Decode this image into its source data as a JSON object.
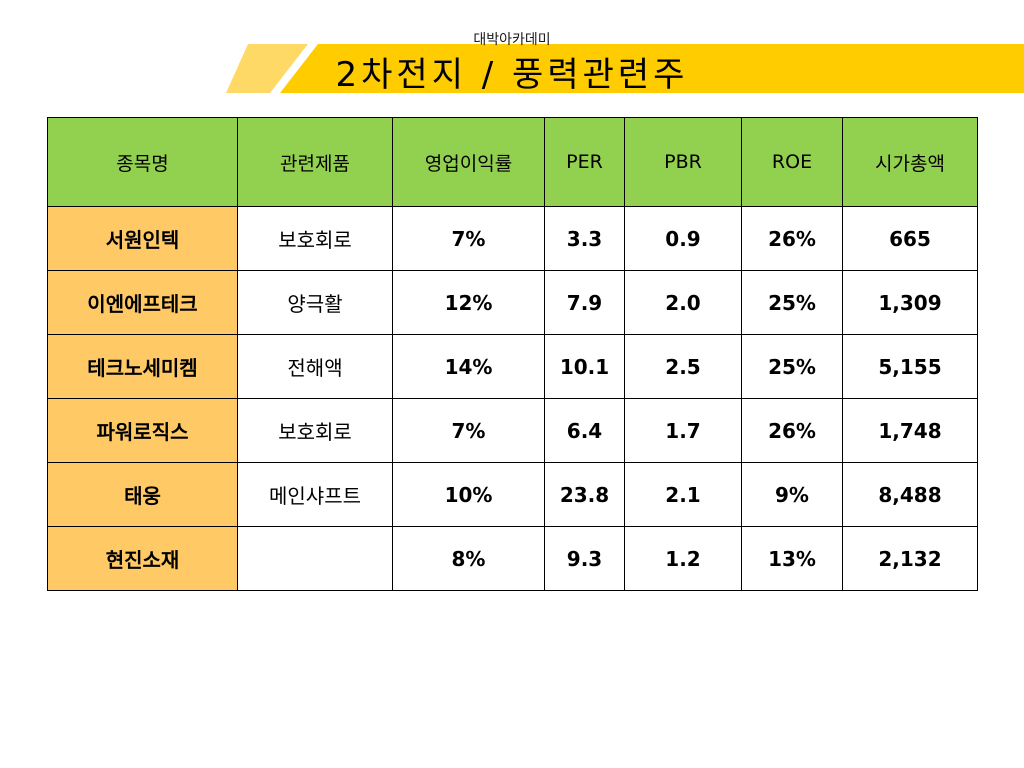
{
  "header": {
    "subtitle": "대박아카데미",
    "title": "2차전지 / 풍력관련주",
    "banner_colors": {
      "main": "#ffcc00",
      "accent": "#ffd966"
    }
  },
  "table": {
    "columns": [
      "종목명",
      "관련제품",
      "영업이익률",
      "PER",
      "PBR",
      "ROE",
      "시가총액"
    ],
    "rows": [
      {
        "name": "서원인텍",
        "product": "보호회로",
        "margin": "7%",
        "per": "3.3",
        "pbr": "0.9",
        "roe": "26%",
        "cap": "665"
      },
      {
        "name": "이엔에프테크",
        "product": "양극활",
        "margin": "12%",
        "per": "7.9",
        "pbr": "2.0",
        "roe": "25%",
        "cap": "1,309"
      },
      {
        "name": "테크노세미켐",
        "product": "전해액",
        "margin": "14%",
        "per": "10.1",
        "pbr": "2.5",
        "roe": "25%",
        "cap": "5,155"
      },
      {
        "name": "파워로직스",
        "product": "보호회로",
        "margin": "7%",
        "per": "6.4",
        "pbr": "1.7",
        "roe": "26%",
        "cap": "1,748"
      },
      {
        "name": "태웅",
        "product": "메인샤프트",
        "margin": "10%",
        "per": "23.8",
        "pbr": "2.1",
        "roe": "9%",
        "cap": "8,488"
      },
      {
        "name": "현진소재",
        "product": "",
        "margin": "8%",
        "per": "9.3",
        "pbr": "1.2",
        "roe": "13%",
        "cap": "2,132"
      }
    ],
    "colors": {
      "header_bg": "#92d050",
      "name_bg": "#ffc966",
      "border": "#000000"
    }
  }
}
